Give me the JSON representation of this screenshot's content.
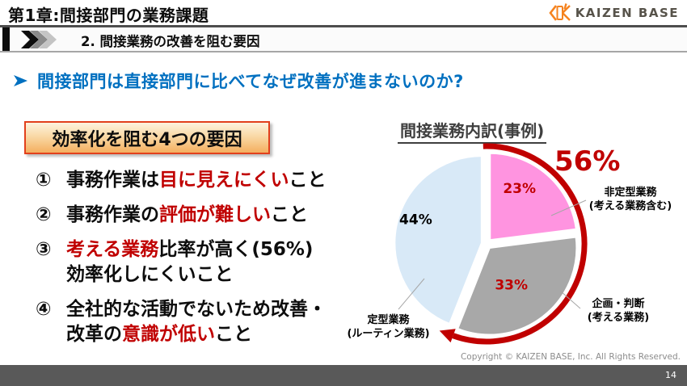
{
  "header": {
    "chapter_title": "第1章:間接部門の業務課題",
    "section_label": "2. 間接業務の改善を阻む要因",
    "section_icon": "triple-chevron-right-icon",
    "logo": {
      "text": "KAIZEN BASE",
      "icon": "kaizen-base-mark-icon",
      "accent_color": "#f5831f",
      "text_color": "#57534a"
    }
  },
  "question": {
    "icon": "arrow-bullet-icon",
    "text": "間接部門は直接部門に比べてなぜ改善が進まないのか?",
    "color": "#0070c0"
  },
  "factors": {
    "box_title": "効率化を阻む4つの要因",
    "box_border_color": "#e2401c",
    "highlight_color": "#c00000",
    "items": [
      {
        "number": "①",
        "lines": [
          [
            {
              "text": "事務作業は",
              "red": false
            },
            {
              "text": "目に見えにくい",
              "red": true
            },
            {
              "text": "こと",
              "red": false
            }
          ]
        ]
      },
      {
        "number": "②",
        "lines": [
          [
            {
              "text": "事務作業の",
              "red": false
            },
            {
              "text": "評価が難しい",
              "red": true
            },
            {
              "text": "こと",
              "red": false
            }
          ]
        ]
      },
      {
        "number": "③",
        "lines": [
          [
            {
              "text": "考える業務",
              "red": true
            },
            {
              "text": "比率が高く(56%)",
              "red": false
            }
          ],
          [
            {
              "text": "効率化しにくいこと",
              "red": false
            }
          ]
        ]
      },
      {
        "number": "④",
        "lines": [
          [
            {
              "text": "全社的な活動でないため改善・",
              "red": false
            }
          ],
          [
            {
              "text": "改革の",
              "red": false
            },
            {
              "text": "意識が低い",
              "red": true
            },
            {
              "text": "こと",
              "red": false
            }
          ]
        ]
      }
    ]
  },
  "chart_data": {
    "type": "pie",
    "title": "間接業務内訳(事例)",
    "start_angle_deg": 0,
    "direction": "clockwise",
    "slices": [
      {
        "label": "非定型業務(考える業務含む)",
        "value": 23,
        "value_label": "23%",
        "color": "#ff94e0",
        "value_label_color": "#c00000"
      },
      {
        "label": "企画・判断(考える業務)",
        "value": 33,
        "value_label": "33%",
        "color": "#a8a8a8",
        "value_label_color": "#c00000"
      },
      {
        "label": "定型業務(ルーティン業務)",
        "value": 44,
        "value_label": "44%",
        "color": "#d8e9f7",
        "value_label_color": "#000000"
      }
    ],
    "callout": {
      "text": "56%",
      "color": "#c00000",
      "covers_values": [
        23,
        33
      ]
    },
    "arc_color": "#c00000"
  },
  "footer": {
    "copyright": "Copyright ©  KAIZEN BASE, Inc.  All Rights Reserved.",
    "page_number": "14"
  }
}
